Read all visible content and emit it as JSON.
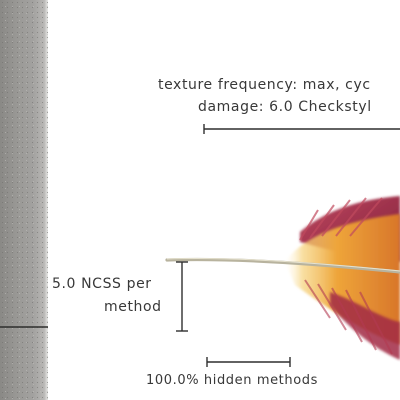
{
  "annotations": {
    "texture_frequency": "texture frequency: max, cyc",
    "damage": "damage: 6.0 Checkstyl",
    "ncss_line1": "5.0 NCSS per",
    "ncss_line2": "method",
    "hidden_methods": "100.0% hidden methods"
  },
  "colors": {
    "feather_red": "#9c2442",
    "feather_orange": "#e9912a",
    "feather_yellow": "#f3c04a",
    "wall_gray": "#9b9a97",
    "rule_line": "#2f2f2f"
  }
}
